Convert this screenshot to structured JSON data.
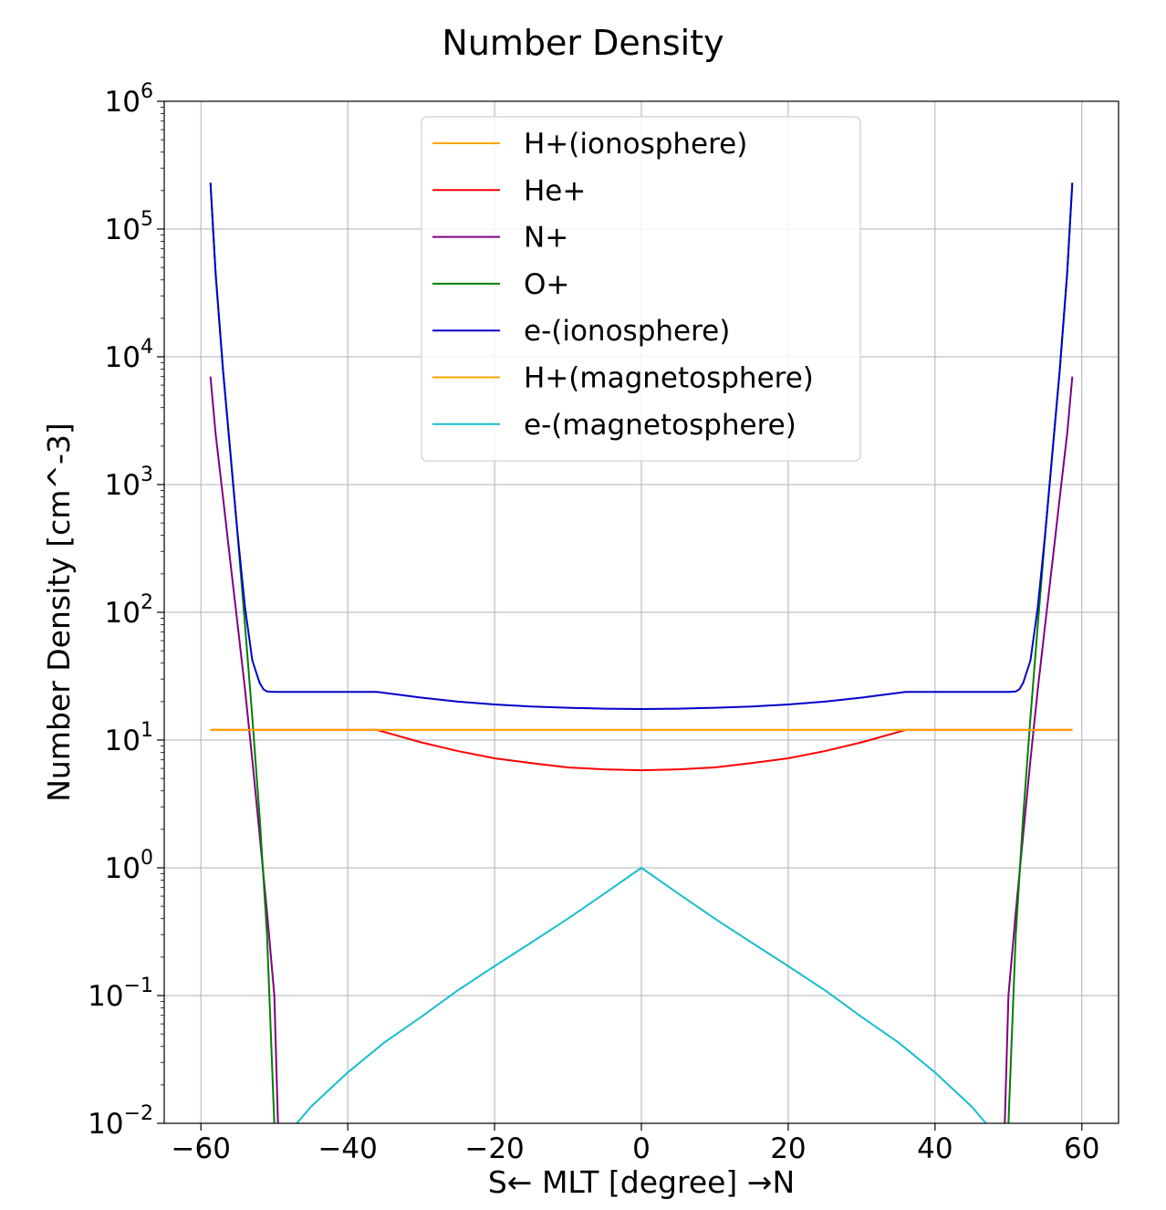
{
  "chart_data": {
    "type": "line",
    "title": "Number Density",
    "xlabel": "S← MLT [degree] →N",
    "ylabel": "Number Density [cm^-3]",
    "xlim": [
      -65,
      65
    ],
    "ylim": [
      0.01,
      1000000
    ],
    "yscale": "log",
    "grid": true,
    "legend_position": "top-center",
    "x_ticks": [
      {
        "value": -60,
        "label": "−60"
      },
      {
        "value": -40,
        "label": "−40"
      },
      {
        "value": -20,
        "label": "−20"
      },
      {
        "value": 0,
        "label": "0"
      },
      {
        "value": 20,
        "label": "20"
      },
      {
        "value": 40,
        "label": "40"
      },
      {
        "value": 60,
        "label": "60"
      }
    ],
    "y_ticks": [
      {
        "value": 0.01,
        "base": "10",
        "exp": "−2"
      },
      {
        "value": 0.1,
        "base": "10",
        "exp": "−1"
      },
      {
        "value": 1,
        "base": "10",
        "exp": "0"
      },
      {
        "value": 10,
        "base": "10",
        "exp": "1"
      },
      {
        "value": 100,
        "base": "10",
        "exp": "2"
      },
      {
        "value": 1000,
        "base": "10",
        "exp": "3"
      },
      {
        "value": 10000,
        "base": "10",
        "exp": "4"
      },
      {
        "value": 100000,
        "base": "10",
        "exp": "5"
      },
      {
        "value": 1000000,
        "base": "10",
        "exp": "6"
      }
    ],
    "series": [
      {
        "name": "H+(ionosphere)",
        "color": "#FFA500",
        "x": [
          -58.7,
          -40,
          -20,
          0,
          20,
          40,
          58.7
        ],
        "y": [
          12,
          12,
          12,
          12,
          12,
          12,
          12
        ]
      },
      {
        "name": "He+",
        "color": "#FF0000",
        "x": [
          -58.7,
          -36,
          -30,
          -25,
          -20,
          -15,
          -10,
          -5,
          0,
          5,
          10,
          15,
          20,
          25,
          30,
          36,
          58.7
        ],
        "y": [
          12,
          12,
          9.6,
          8.2,
          7.2,
          6.6,
          6.1,
          5.9,
          5.8,
          5.9,
          6.1,
          6.6,
          7.2,
          8.2,
          9.6,
          12,
          12
        ]
      },
      {
        "name": "N+",
        "color": "#800080",
        "x": [
          -58.7,
          -58,
          -57,
          -56,
          -55,
          -54,
          -53,
          -52,
          -51,
          -50,
          -49.5,
          49.5,
          50,
          51,
          52,
          53,
          54,
          55,
          56,
          57,
          58,
          58.7
        ],
        "y": [
          7000,
          2500,
          800,
          250,
          80,
          25,
          7,
          1.8,
          0.45,
          0.1,
          0.0099,
          0.0099,
          0.1,
          0.45,
          1.8,
          7,
          25,
          80,
          250,
          800,
          2500,
          7000
        ]
      },
      {
        "name": "O+",
        "color": "#008000",
        "x": [
          -58.7,
          -58,
          -57,
          -56,
          -55,
          -54,
          -53,
          -52,
          -51,
          -50,
          50,
          51,
          52,
          53,
          54,
          55,
          56,
          57,
          58,
          58.7
        ],
        "y": [
          230000,
          45000,
          8000,
          1800,
          400,
          80,
          15,
          2.5,
          0.3,
          0.0099,
          0.0099,
          0.3,
          2.5,
          15,
          80,
          400,
          1800,
          8000,
          45000,
          230000
        ]
      },
      {
        "name": "e-(ionosphere)",
        "color": "#0000CD",
        "x": [
          -58.7,
          -58,
          -57,
          -56,
          -55,
          -54,
          -53,
          -52,
          -51.5,
          -51,
          -50,
          -45,
          -36,
          -30,
          -25,
          -20,
          -15,
          -10,
          -5,
          0,
          5,
          10,
          15,
          20,
          25,
          30,
          36,
          45,
          50,
          51,
          51.5,
          52,
          53,
          54,
          55,
          56,
          57,
          58,
          58.7
        ],
        "y": [
          230000,
          45000,
          8000,
          1800,
          410,
          110,
          42,
          28,
          25,
          24,
          23.8,
          23.8,
          23.8,
          21.5,
          20,
          19,
          18.3,
          17.9,
          17.6,
          17.5,
          17.6,
          17.9,
          18.3,
          19,
          20,
          21.5,
          23.8,
          23.8,
          23.8,
          24,
          25,
          28,
          42,
          110,
          410,
          1800,
          8000,
          45000,
          230000
        ]
      },
      {
        "name": "H+(magnetosphere)",
        "color": "#FFA500",
        "x": [
          -58.7,
          0,
          58.7
        ],
        "y": [
          12,
          12,
          12
        ]
      },
      {
        "name": "e-(magnetosphere)",
        "color": "#17BECF",
        "x": [
          -47,
          -45,
          -40,
          -35,
          -30,
          -25,
          -20,
          -15,
          -10,
          -5,
          0,
          5,
          10,
          15,
          20,
          25,
          30,
          35,
          40,
          45,
          47
        ],
        "y": [
          0.0099,
          0.0135,
          0.025,
          0.043,
          0.068,
          0.11,
          0.17,
          0.26,
          0.4,
          0.63,
          1.0,
          0.63,
          0.4,
          0.26,
          0.17,
          0.11,
          0.068,
          0.043,
          0.025,
          0.0135,
          0.0099
        ]
      }
    ]
  }
}
